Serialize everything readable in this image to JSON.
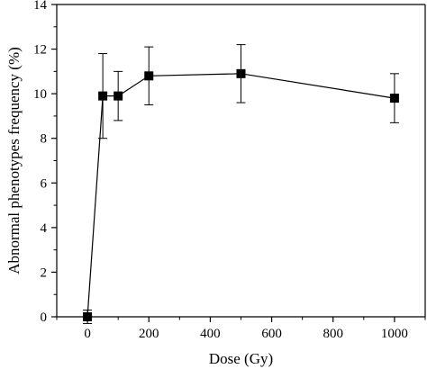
{
  "chart_data": {
    "type": "scatter",
    "title": "",
    "xlabel": "Dose (Gy)",
    "ylabel": "Abnormal phenotypes frequency (%)",
    "xlim": [
      -100,
      1100
    ],
    "ylim": [
      0,
      14
    ],
    "x_ticks": [
      0,
      200,
      400,
      600,
      800,
      1000
    ],
    "y_ticks": [
      0,
      2,
      4,
      6,
      8,
      10,
      12,
      14
    ],
    "x_tick_labels": [
      "0",
      "200",
      "400",
      "600",
      "800",
      "1000"
    ],
    "y_tick_labels": [
      "0",
      "2",
      "4",
      "6",
      "8",
      "10",
      "12",
      "14"
    ],
    "grid": false,
    "legend": "none",
    "marker": "square",
    "line": true,
    "series": [
      {
        "x": [
          0,
          50,
          100,
          200,
          500,
          1000
        ],
        "y": [
          0.0,
          9.9,
          9.9,
          10.8,
          10.9,
          9.8
        ],
        "error_low": [
          0.3,
          1.9,
          1.1,
          1.3,
          1.3,
          1.1
        ],
        "error_high": [
          0.3,
          1.9,
          1.1,
          1.3,
          1.3,
          1.1
        ]
      }
    ],
    "colors": {
      "axis": "#000000",
      "marker": "#000000",
      "line": "#000000"
    }
  }
}
